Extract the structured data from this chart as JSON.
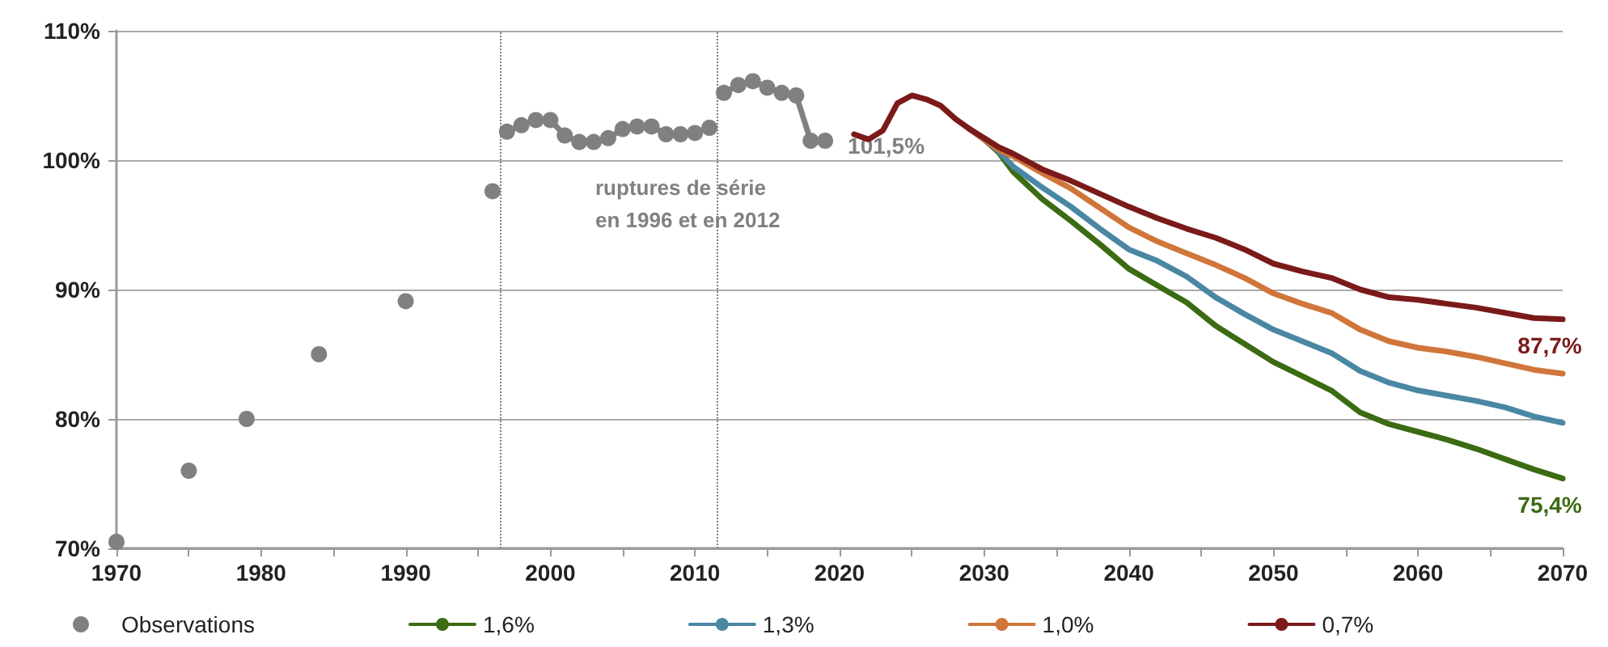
{
  "chart_data": {
    "type": "line",
    "xlim": [
      1970,
      2070
    ],
    "xticks": [
      1970,
      {
        "value": 1975,
        "label": null
      },
      1980,
      {
        "value": 1985,
        "label": null
      },
      1990,
      {
        "value": 1995,
        "label": null
      },
      2000,
      {
        "value": 2005,
        "label": null
      },
      2010,
      {
        "value": 2015,
        "label": null
      },
      2020,
      {
        "value": 2025,
        "label": null
      },
      2030,
      {
        "value": 2035,
        "label": null
      },
      2040,
      {
        "value": 2045,
        "label": null
      },
      2050,
      {
        "value": 2055,
        "label": null
      },
      2060,
      {
        "value": 2065,
        "label": null
      },
      2070
    ],
    "ylim": [
      70,
      110
    ],
    "yticks": [
      {
        "value": 70,
        "label": "70%"
      },
      {
        "value": 80,
        "label": "80%"
      },
      {
        "value": 90,
        "label": "90%"
      },
      {
        "value": 100,
        "label": "100%"
      },
      {
        "value": 110,
        "label": "110%"
      }
    ],
    "grid": "y",
    "legend": "bottom",
    "line_style": "solid",
    "annotations": [
      "ruptures de série\nen 1996 et en 2012"
    ],
    "ref_lines": [
      {
        "axis": "x",
        "value": 1996.5,
        "color": "#808080",
        "line_style": "dotted"
      },
      {
        "axis": "x",
        "value": 2011.5,
        "color": "#808080",
        "line_style": "dotted"
      }
    ],
    "series": [
      {
        "name": "Observations",
        "color": "#808080",
        "marker": "circle",
        "x": [
          1970,
          1972,
          1975,
          1977,
          1979,
          1981,
          1984,
          1987,
          1990,
          1993,
          1996,
          1996.5,
          1997,
          1998,
          1999,
          2000,
          2001,
          2002,
          2003,
          2004,
          2005,
          2006,
          2007,
          2008,
          2009,
          2010,
          2011,
          2011.5,
          2012,
          2013,
          2014,
          2015,
          2016,
          2017,
          2018,
          2019
        ],
        "values": [
          70.5,
          null,
          76.0,
          null,
          80.0,
          null,
          85.0,
          null,
          89.1,
          null,
          97.6,
          null,
          102.2,
          102.7,
          103.1,
          103.1,
          101.9,
          101.4,
          101.4,
          101.7,
          102.4,
          102.6,
          102.6,
          102.0,
          102.0,
          102.1,
          102.5,
          null,
          105.2,
          105.8,
          106.1,
          105.6,
          105.2,
          105.0,
          101.5,
          101.5
        ],
        "value_labels": [
          null,
          null,
          null,
          null,
          null,
          null,
          null,
          null,
          null,
          null,
          null,
          null,
          null,
          null,
          null,
          null,
          null,
          null,
          null,
          null,
          null,
          null,
          null,
          null,
          null,
          null,
          null,
          null,
          null,
          null,
          null,
          null,
          null,
          null,
          null,
          "101,5%"
        ]
      },
      {
        "name": "1,6%",
        "color": "#3b6b12",
        "marker": "none",
        "x": [
          2029,
          2030,
          2031,
          2032,
          2034,
          2036,
          2038,
          2040,
          2042,
          2044,
          2046,
          2048,
          2050,
          2052,
          2054,
          2056,
          2058,
          2060,
          2062,
          2064,
          2066,
          2068,
          2070
        ],
        "values": [
          102.4,
          101.6,
          100.6,
          99.1,
          97.0,
          95.3,
          93.5,
          91.6,
          90.3,
          89.0,
          87.2,
          85.8,
          84.4,
          83.3,
          82.2,
          80.5,
          79.6,
          79.0,
          78.4,
          77.7,
          76.9,
          76.1,
          75.4
        ],
        "value_labels": [
          null,
          null,
          null,
          null,
          null,
          null,
          null,
          null,
          null,
          null,
          null,
          null,
          null,
          null,
          null,
          null,
          null,
          null,
          null,
          null,
          null,
          null,
          "75,4%"
        ]
      },
      {
        "name": "1,3%",
        "color": "#4a87a3",
        "marker": "none",
        "x": [
          2029,
          2030,
          2031,
          2032,
          2034,
          2036,
          2038,
          2040,
          2042,
          2044,
          2046,
          2048,
          2050,
          2052,
          2054,
          2056,
          2058,
          2060,
          2062,
          2064,
          2066,
          2068,
          2070
        ],
        "values": [
          102.4,
          101.6,
          100.7,
          99.5,
          97.9,
          96.4,
          94.7,
          93.1,
          92.2,
          91.0,
          89.4,
          88.1,
          86.9,
          86.0,
          85.1,
          83.7,
          82.8,
          82.2,
          81.8,
          81.4,
          80.9,
          80.2,
          79.7
        ]
      },
      {
        "name": "1,0%",
        "color": "#d0763a",
        "marker": "none",
        "x": [
          2029,
          2030,
          2031,
          2032,
          2034,
          2036,
          2038,
          2040,
          2042,
          2044,
          2046,
          2048,
          2050,
          2052,
          2054,
          2056,
          2058,
          2060,
          2062,
          2064,
          2066,
          2068,
          2070
        ],
        "values": [
          102.4,
          101.6,
          100.8,
          100.3,
          99.0,
          97.8,
          96.3,
          94.8,
          93.7,
          92.8,
          91.9,
          90.9,
          89.7,
          88.9,
          88.2,
          86.9,
          86.0,
          85.5,
          85.2,
          84.8,
          84.3,
          83.8,
          83.5
        ]
      },
      {
        "name": "0,7%",
        "color": "#7b1a1a",
        "marker": "none",
        "x": [
          2021,
          2022,
          2023,
          2024,
          2025,
          2026,
          2027,
          2028,
          2029,
          2030,
          2031,
          2032,
          2034,
          2036,
          2038,
          2040,
          2042,
          2044,
          2046,
          2048,
          2050,
          2052,
          2054,
          2056,
          2058,
          2060,
          2062,
          2064,
          2066,
          2068,
          2070
        ],
        "values": [
          102.0,
          101.6,
          102.3,
          104.4,
          105.0,
          104.7,
          104.2,
          103.2,
          102.4,
          101.7,
          101.0,
          100.5,
          99.3,
          98.4,
          97.4,
          96.4,
          95.5,
          94.7,
          94.0,
          93.1,
          92.0,
          91.4,
          90.9,
          90.0,
          89.4,
          89.2,
          88.9,
          88.6,
          88.2,
          87.8,
          87.7
        ],
        "value_labels": [
          null,
          null,
          null,
          null,
          null,
          null,
          null,
          null,
          null,
          null,
          null,
          null,
          null,
          null,
          null,
          null,
          null,
          null,
          null,
          null,
          null,
          null,
          null,
          null,
          null,
          null,
          null,
          null,
          null,
          null,
          "87,7%"
        ]
      }
    ]
  }
}
